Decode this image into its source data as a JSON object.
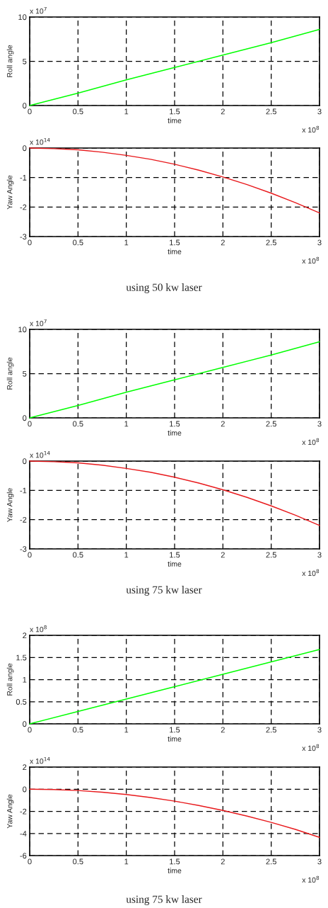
{
  "chart_data": [
    {
      "type": "line",
      "xlabel": "time",
      "ylabel": "Roll angle",
      "x": [
        0,
        0.5,
        1,
        1.5,
        2,
        2.5,
        3
      ],
      "series": [
        {
          "color": "#00ff00",
          "values": [
            0,
            1.4,
            2.9,
            4.3,
            5.7,
            7.1,
            8.6
          ]
        }
      ],
      "xlim": [
        0,
        3
      ],
      "ylim": [
        0,
        10
      ],
      "xticks": [
        0,
        0.5,
        1,
        1.5,
        2,
        2.5,
        3
      ],
      "yticks": [
        0,
        5,
        10
      ],
      "grid": true,
      "annotations": [
        "x 10$^{7}$",
        "x 10$^{8}$"
      ]
    },
    {
      "type": "line",
      "xlabel": "time",
      "ylabel": "Yaw Angle",
      "x": [
        0,
        0.25,
        0.5,
        0.75,
        1,
        1.25,
        1.5,
        1.75,
        2,
        2.25,
        2.5,
        2.75,
        3
      ],
      "series": [
        {
          "color": "#e8191c",
          "values": [
            0,
            -0.02,
            -0.06,
            -0.14,
            -0.25,
            -0.38,
            -0.55,
            -0.75,
            -0.98,
            -1.24,
            -1.53,
            -1.85,
            -2.2
          ]
        }
      ],
      "xlim": [
        0,
        3
      ],
      "ylim": [
        -3,
        0
      ],
      "xticks": [
        0,
        0.5,
        1,
        1.5,
        2,
        2.5,
        3
      ],
      "yticks": [
        -3,
        -2,
        -1,
        0
      ],
      "grid": true,
      "annotations": [
        "x 10$^{14}$",
        "x 10$^{8}$",
        "using 50 kw laser"
      ]
    },
    {
      "type": "line",
      "xlabel": "time",
      "ylabel": "Roll angle",
      "x": [
        0,
        0.5,
        1,
        1.5,
        2,
        2.5,
        3
      ],
      "series": [
        {
          "color": "#00ff00",
          "values": [
            0,
            1.4,
            2.9,
            4.3,
            5.7,
            7.1,
            8.6
          ]
        }
      ],
      "xlim": [
        0,
        3
      ],
      "ylim": [
        0,
        10
      ],
      "xticks": [
        0,
        0.5,
        1,
        1.5,
        2,
        2.5,
        3
      ],
      "yticks": [
        0,
        5,
        10
      ],
      "grid": true,
      "annotations": [
        "x 10$^{7}$",
        "x 10$^{8}$"
      ]
    },
    {
      "type": "line",
      "xlabel": "time",
      "ylabel": "Yaw Angle",
      "x": [
        0,
        0.25,
        0.5,
        0.75,
        1,
        1.25,
        1.5,
        1.75,
        2,
        2.25,
        2.5,
        2.75,
        3
      ],
      "series": [
        {
          "color": "#e8191c",
          "values": [
            0,
            -0.02,
            -0.06,
            -0.14,
            -0.25,
            -0.38,
            -0.55,
            -0.75,
            -0.98,
            -1.24,
            -1.53,
            -1.85,
            -2.2
          ]
        }
      ],
      "xlim": [
        0,
        3
      ],
      "ylim": [
        -3,
        0
      ],
      "xticks": [
        0,
        0.5,
        1,
        1.5,
        2,
        2.5,
        3
      ],
      "yticks": [
        -3,
        -2,
        -1,
        0
      ],
      "grid": true,
      "annotations": [
        "x 10$^{14}$",
        "x 10$^{8}$",
        "using 75 kw laser"
      ]
    },
    {
      "type": "line",
      "xlabel": "time",
      "ylabel": "Roll angle",
      "x": [
        0,
        0.5,
        1,
        1.5,
        2,
        2.5,
        3
      ],
      "series": [
        {
          "color": "#00ff00",
          "values": [
            0,
            0.28,
            0.56,
            0.84,
            1.12,
            1.4,
            1.68
          ]
        }
      ],
      "xlim": [
        0,
        3
      ],
      "ylim": [
        0,
        2
      ],
      "xticks": [
        0,
        0.5,
        1,
        1.5,
        2,
        2.5,
        3
      ],
      "yticks": [
        0,
        0.5,
        1,
        1.5,
        2
      ],
      "grid": true,
      "annotations": [
        "x 10$^{8}$",
        "x 10$^{8}$"
      ]
    },
    {
      "type": "line",
      "xlabel": "time",
      "ylabel": "Yaw Angle",
      "x": [
        0,
        0.25,
        0.5,
        0.75,
        1,
        1.25,
        1.5,
        1.75,
        2,
        2.25,
        2.5,
        2.75,
        3
      ],
      "series": [
        {
          "color": "#e8191c",
          "values": [
            0,
            -0.03,
            -0.12,
            -0.27,
            -0.48,
            -0.75,
            -1.08,
            -1.47,
            -1.92,
            -2.43,
            -3.0,
            -3.63,
            -4.35
          ]
        }
      ],
      "xlim": [
        0,
        3
      ],
      "ylim": [
        -6,
        2
      ],
      "xticks": [
        0,
        0.5,
        1,
        1.5,
        2,
        2.5,
        3
      ],
      "yticks": [
        -6,
        -4,
        -2,
        0,
        2
      ],
      "grid": true,
      "annotations": [
        "x 10$^{14}$",
        "x 10$^{8}$",
        "using 75 kw laser"
      ]
    }
  ]
}
